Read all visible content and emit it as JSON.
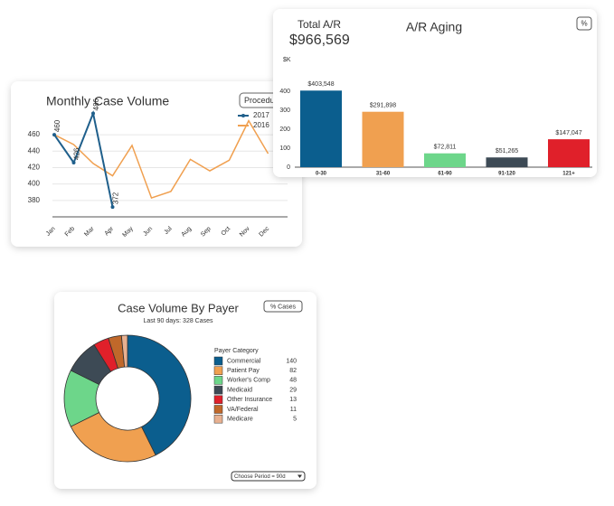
{
  "chart_data": [
    {
      "type": "line",
      "title": "Monthly Case Volume",
      "button": "Procedu",
      "categories": [
        "Jan",
        "Feb",
        "Mar",
        "Apr",
        "May",
        "Jun",
        "Jul",
        "Aug",
        "Sep",
        "Oct",
        "Nov",
        "Dec"
      ],
      "series": [
        {
          "name": "2017",
          "color": "#1f5f8b",
          "values": [
            460,
            426,
            486,
            372,
            null,
            null,
            null,
            null,
            null,
            null,
            null,
            null
          ],
          "value_labels": [
            "460",
            "426",
            "486",
            "372",
            null,
            null,
            null,
            null,
            null,
            null,
            null,
            null
          ]
        },
        {
          "name": "2016",
          "color": "#f0a050",
          "values": [
            460,
            448,
            425,
            410,
            447,
            383,
            391,
            430,
            416,
            429,
            477,
            437
          ]
        }
      ],
      "ylim": [
        360,
        470
      ],
      "yticks": [
        380,
        400,
        420,
        440,
        460
      ],
      "grid": true
    },
    {
      "type": "bar",
      "title": "A/R Aging",
      "total_label": "Total A/R",
      "total_value": "$966,569",
      "y_label": "$K",
      "button": "%",
      "categories": [
        "0-30",
        "31-60",
        "61-90",
        "91-120",
        "121+"
      ],
      "values": [
        403.548,
        291.898,
        72.811,
        51.265,
        147.047
      ],
      "value_labels": [
        "$403,548",
        "$291,898",
        "$72,811",
        "$51,265",
        "$147,047"
      ],
      "colors": [
        "#0b5e8e",
        "#f0a050",
        "#6dd68a",
        "#3d4a55",
        "#e0202a"
      ],
      "ylim": [
        0,
        430
      ],
      "yticks": [
        0,
        100,
        200,
        300,
        400
      ]
    },
    {
      "type": "donut",
      "title": "Case Volume By Payer",
      "subtitle": "Last 90 days: 328 Cases",
      "button": "% Cases",
      "legend_title": "Payer Category",
      "period": "Choose Period = 90d",
      "categories": [
        "Commercial",
        "Patient Pay",
        "Worker's Comp",
        "Medicaid",
        "Other Insurance",
        "VA/Federal",
        "Medicare"
      ],
      "values": [
        140,
        82,
        48,
        29,
        13,
        11,
        5
      ],
      "colors": [
        "#0b5e8e",
        "#f0a050",
        "#6dd68a",
        "#3d4a55",
        "#e0202a",
        "#c0682a",
        "#e8b090"
      ]
    }
  ]
}
